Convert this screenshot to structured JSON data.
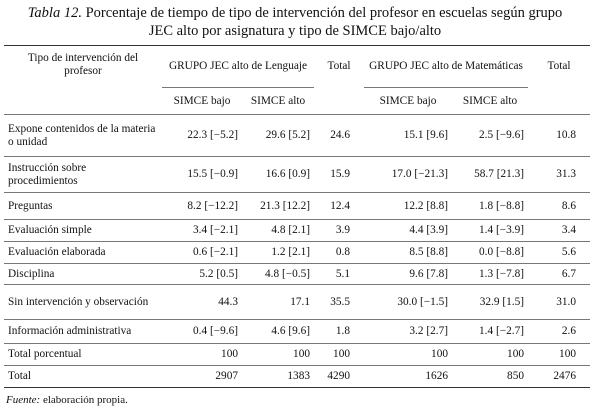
{
  "title": {
    "label": "Tabla 12.",
    "text": "Porcentaje de tiempo de tipo de intervención del profesor en escuelas según grupo JEC alto por asignatura y tipo de SIMCE bajo/alto"
  },
  "table": {
    "header": [
      "Tipo de intervención del profesor",
      "GRUPO JEC alto de Lenguaje",
      "Total",
      "GRUPO JEC alto de Matemáticas",
      "Total"
    ],
    "subheader": [
      "SIMCE bajo",
      "SIMCE alto",
      "SIMCE bajo",
      "SIMCE alto"
    ],
    "rows": [
      [
        "Expone contenidos de la materia o unidad",
        "22.3 [−5.2]",
        "29.6 [5.2]",
        "24.6",
        "15.1 [9.6]",
        "2.5 [−9.6]",
        "10.8"
      ],
      [
        "Instrucción sobre procedimientos",
        "15.5 [−0.9]",
        "16.6 [0.9]",
        "15.9",
        "17.0 [−21.3]",
        "58.7 [21.3]",
        "31.3"
      ],
      [
        "Preguntas",
        "8.2 [−12.2]",
        "21.3 [12.2]",
        "12.4",
        "12.2 [8.8]",
        "1.8 [−8.8]",
        "8.6"
      ],
      [
        "Evaluación simple",
        "3.4 [−2.1]",
        "4.8 [2.1]",
        "3.9",
        "4.4 [3.9]",
        "1.4 [−3.9]",
        "3.4"
      ],
      [
        "Evaluación elaborada",
        "0.6 [−2.1]",
        "1.2 [2.1]",
        "0.8",
        "8.5 [8.8]",
        "0.0 [−8.8]",
        "5.6"
      ],
      [
        "Disciplina",
        "5.2 [0.5]",
        "4.8 [−0.5]",
        "5.1",
        "9.6 [7.8]",
        "1.3 [−7.8]",
        "6.7"
      ],
      [
        "Sin intervención y observación",
        "44.3",
        "17.1",
        "35.5",
        "30.0 [−1.5]",
        "32.9 [1.5]",
        "31.0"
      ],
      [
        "Información administrativa",
        "0.4 [−9.6]",
        "4.6 [9.6]",
        "1.8",
        "3.2 [2.7]",
        "1.4 [−2.7]",
        "2.6"
      ],
      [
        "Total porcentual",
        "100",
        "100",
        "100",
        "100",
        "100",
        "100"
      ],
      [
        "Total",
        "2907",
        "1383",
        "4290",
        "1626",
        "850",
        "2476"
      ]
    ]
  },
  "source": {
    "label": "Fuente:",
    "text": "elaboración propia."
  }
}
